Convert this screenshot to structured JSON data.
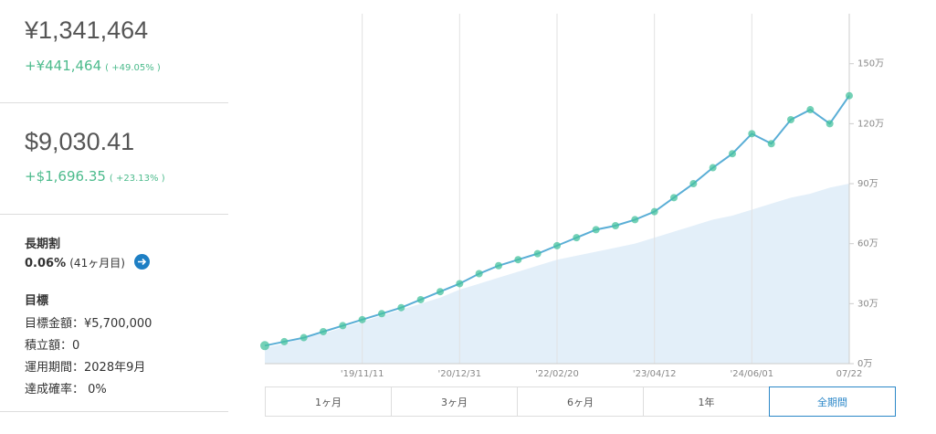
{
  "summary": {
    "jpy": {
      "value": "¥1,341,464",
      "change": "+¥441,464",
      "percent": "( +49.05% )"
    },
    "usd": {
      "value": "$9,030.41",
      "change": "+$1,696.35",
      "percent": "( +23.13% )"
    }
  },
  "long_term": {
    "title": "長期割",
    "rate": "0.06%",
    "month": "(41ヶ月目)"
  },
  "goal": {
    "title": "目標",
    "items": [
      "目標金額：¥5,700,000",
      "積立額：0",
      "運用期間：2028年9月",
      "達成確率： 0%"
    ]
  },
  "period_buttons": [
    "1ヶ月",
    "3ヶ月",
    "6ヶ月",
    "1年",
    "全期間"
  ],
  "selected_period_index": 4,
  "chart_data": {
    "type": "line",
    "categories": [
      null,
      null,
      null,
      null,
      null,
      "'19/11/11",
      null,
      null,
      null,
      null,
      "'20/12/31",
      null,
      null,
      null,
      null,
      "'22/02/20",
      null,
      null,
      null,
      null,
      "'23/04/12",
      null,
      null,
      null,
      null,
      "'24/06/01",
      null,
      null,
      null,
      null,
      "07/22"
    ],
    "series": [
      {
        "color": "#45c29e",
        "values": [
          9,
          11,
          13,
          16,
          19,
          22,
          25,
          28,
          32,
          36,
          40,
          45,
          49,
          52,
          55,
          59,
          63,
          67,
          69,
          72,
          76,
          83,
          90,
          98,
          105,
          115,
          110,
          122,
          127,
          120,
          134
        ]
      },
      {
        "color": "#e3eff9",
        "fill": true,
        "values": [
          8,
          10,
          13,
          15,
          18,
          21,
          24,
          27,
          30,
          33,
          37,
          40,
          43,
          46,
          49,
          52,
          54,
          56,
          58,
          60,
          63,
          66,
          69,
          72,
          74,
          77,
          80,
          83,
          85,
          88,
          90
        ]
      }
    ],
    "ylim": [
      0,
      175
    ],
    "yticks": [
      {
        "value": 0,
        "label": "0万"
      },
      {
        "value": 30,
        "label": "30万"
      },
      {
        "value": 60,
        "label": "60万"
      },
      {
        "value": 90,
        "label": "90万"
      },
      {
        "value": 120,
        "label": "120万"
      },
      {
        "value": 150,
        "label": "150万"
      }
    ],
    "grid": true
  }
}
